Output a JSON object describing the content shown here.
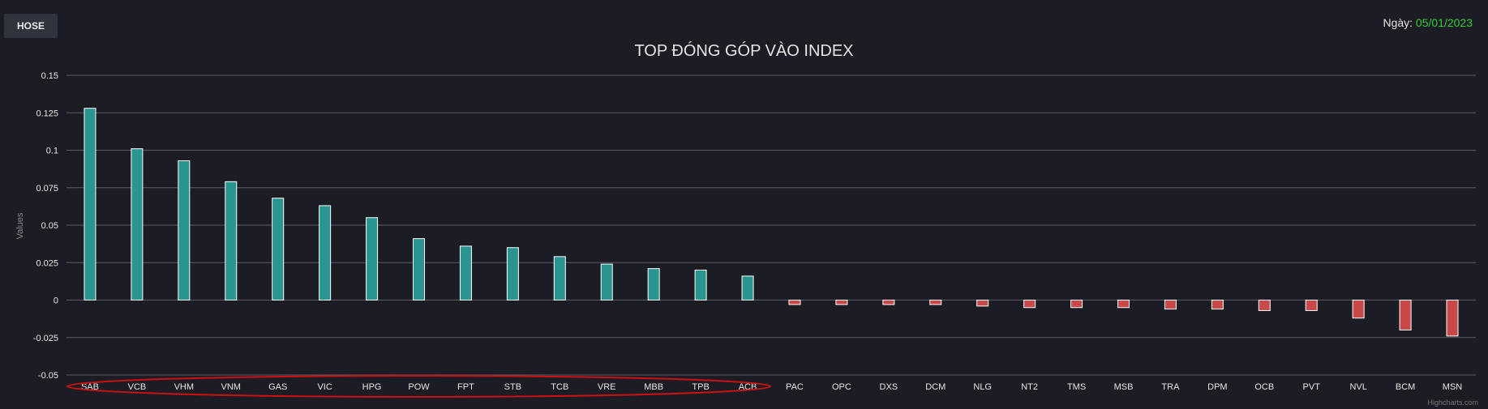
{
  "market_button": "HOSE",
  "date_label": "Ngày:",
  "date_value": "05/01/2023",
  "credits": "Highcharts.com",
  "chart_data": {
    "type": "bar",
    "title": "TOP ĐÓNG GÓP VÀO INDEX",
    "ylabel": "Values",
    "xlabel": "",
    "ylim": [
      -0.05,
      0.15
    ],
    "yticks": [
      "0.15",
      "0.125",
      "0.1",
      "0.075",
      "0.05",
      "0.025",
      "0",
      "-0.025",
      "-0.05"
    ],
    "ytick_values": [
      0.15,
      0.125,
      0.1,
      0.075,
      0.05,
      0.025,
      0,
      -0.025,
      -0.05
    ],
    "grid": true,
    "positive_color": "#2a9490",
    "negative_color": "#c9494b",
    "highlight_color": "#cc1111",
    "categories": [
      "SAB",
      "VCB",
      "VHM",
      "VNM",
      "GAS",
      "VIC",
      "HPG",
      "POW",
      "FPT",
      "STB",
      "TCB",
      "VRE",
      "MBB",
      "TPB",
      "ACB",
      "PAC",
      "OPC",
      "DXS",
      "DCM",
      "NLG",
      "NT2",
      "TMS",
      "MSB",
      "TRA",
      "DPM",
      "OCB",
      "PVT",
      "NVL",
      "BCM",
      "MSN"
    ],
    "values": [
      0.128,
      0.101,
      0.093,
      0.079,
      0.068,
      0.063,
      0.055,
      0.041,
      0.036,
      0.035,
      0.029,
      0.024,
      0.021,
      0.02,
      0.016,
      -0.003,
      -0.003,
      -0.003,
      -0.003,
      -0.004,
      -0.005,
      -0.005,
      -0.005,
      -0.006,
      -0.006,
      -0.007,
      -0.007,
      -0.012,
      -0.02,
      -0.024
    ],
    "highlighted_categories": [
      "SAB",
      "VCB",
      "VHM",
      "VNM",
      "GAS",
      "VIC",
      "HPG",
      "POW",
      "FPT",
      "STB",
      "TCB",
      "VRE",
      "MBB",
      "TPB",
      "ACB"
    ]
  }
}
